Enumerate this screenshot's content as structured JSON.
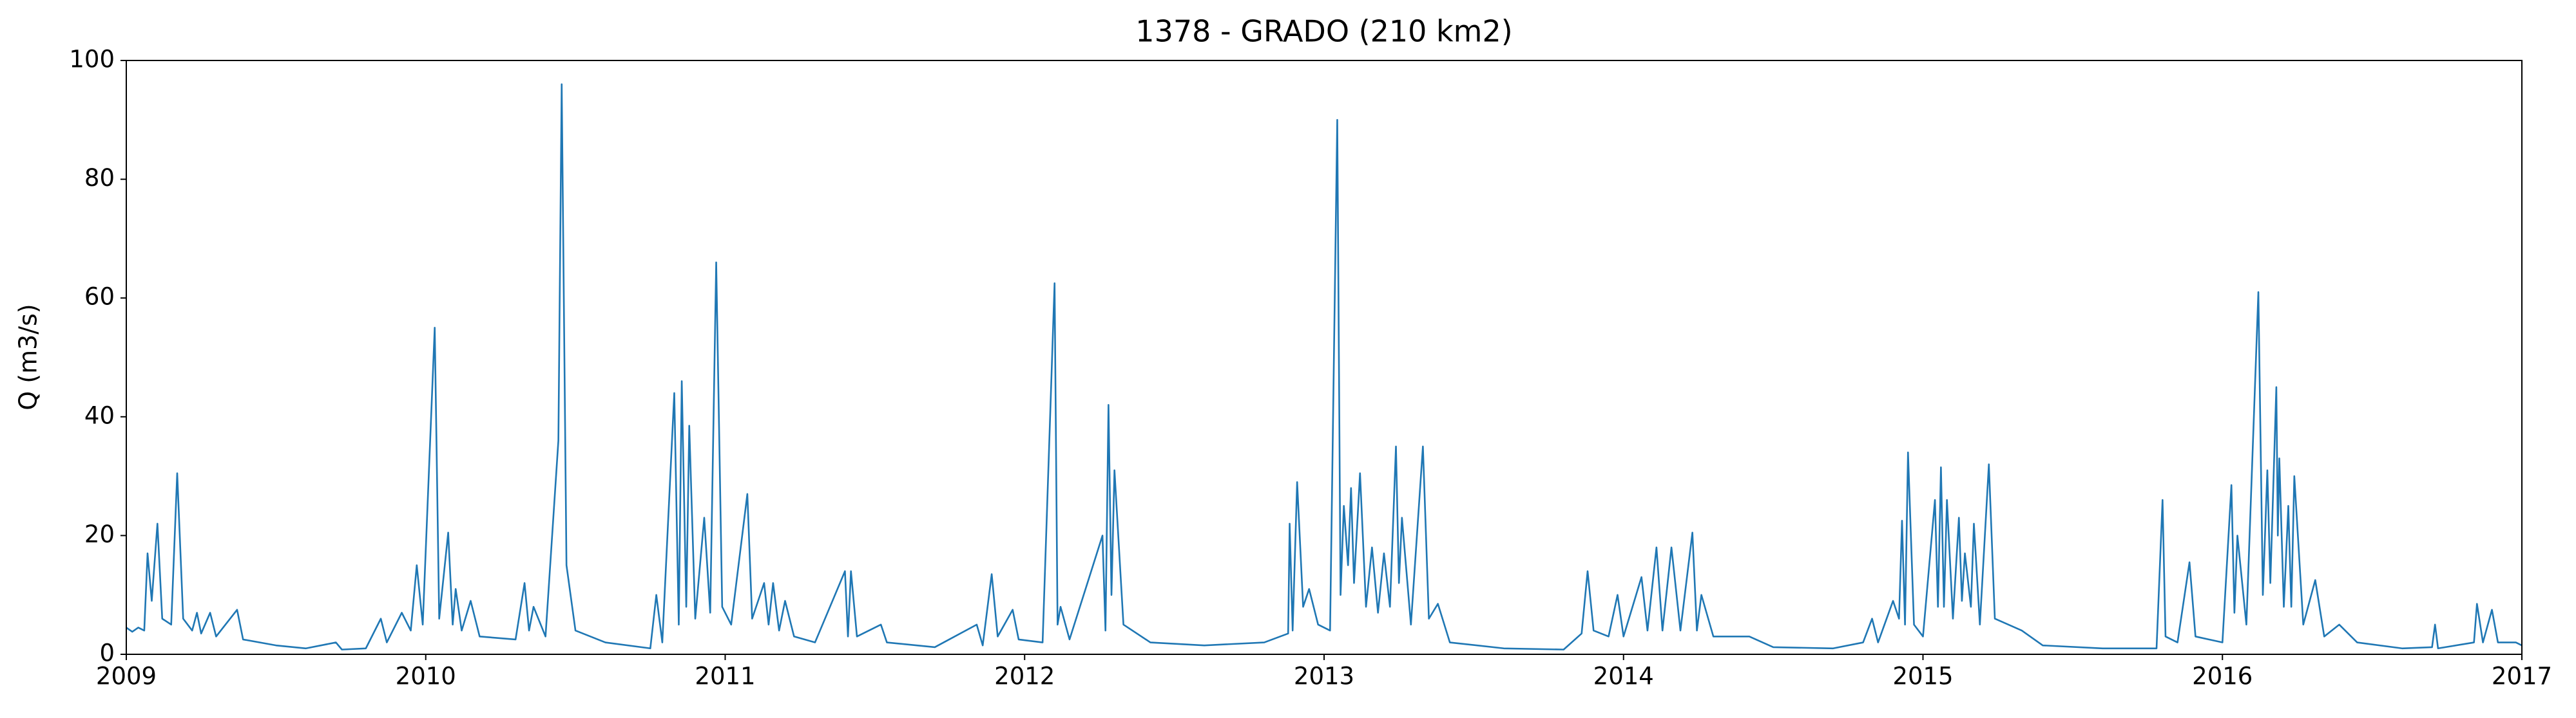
{
  "chart_data": {
    "type": "line",
    "title": "1378 - GRADO (210 km2)",
    "y_label": "Q (m3/s)",
    "color": "#1f77b4",
    "xlim": [
      2009,
      2017
    ],
    "xticks": [
      2009,
      2010,
      2011,
      2012,
      2013,
      2014,
      2015,
      2016,
      2017
    ],
    "ylim": [
      0,
      100
    ],
    "yticks": [
      0,
      20,
      40,
      60,
      80,
      100
    ],
    "x": [
      2009.0,
      2009.02,
      2009.04,
      2009.06,
      2009.071,
      2009.085,
      2009.104,
      2009.12,
      2009.15,
      2009.17,
      2009.19,
      2009.22,
      2009.236,
      2009.25,
      2009.28,
      2009.3,
      2009.37,
      2009.39,
      2009.5,
      2009.6,
      2009.7,
      2009.72,
      2009.8,
      2009.85,
      2009.87,
      2009.92,
      2009.95,
      2009.97,
      2009.99,
      2010.03,
      2010.045,
      2010.075,
      2010.09,
      2010.1,
      2010.12,
      2010.15,
      2010.18,
      2010.3,
      2010.33,
      2010.345,
      2010.36,
      2010.4,
      2010.443,
      2010.454,
      2010.47,
      2010.5,
      2010.6,
      2010.75,
      2010.77,
      2010.79,
      2010.83,
      2010.845,
      2010.855,
      2010.87,
      2010.88,
      2010.9,
      2010.93,
      2010.95,
      2010.97,
      2010.99,
      2011.02,
      2011.074,
      2011.09,
      2011.13,
      2011.145,
      2011.16,
      2011.18,
      2011.2,
      2011.23,
      2011.3,
      2011.4,
      2011.41,
      2011.42,
      2011.44,
      2011.52,
      2011.54,
      2011.7,
      2011.84,
      2011.86,
      2011.89,
      2011.91,
      2011.96,
      2011.98,
      2012.06,
      2012.1,
      2012.11,
      2012.12,
      2012.15,
      2012.26,
      2012.27,
      2012.28,
      2012.29,
      2012.3,
      2012.33,
      2012.42,
      2012.6,
      2012.8,
      2012.88,
      2012.885,
      2012.895,
      2012.91,
      2012.93,
      2012.95,
      2012.98,
      2013.02,
      2013.044,
      2013.055,
      2013.066,
      2013.08,
      2013.09,
      2013.1,
      2013.12,
      2013.14,
      2013.16,
      2013.18,
      2013.2,
      2013.22,
      2013.24,
      2013.25,
      2013.26,
      2013.29,
      2013.33,
      2013.35,
      2013.38,
      2013.42,
      2013.6,
      2013.8,
      2013.86,
      2013.88,
      2013.9,
      2013.95,
      2013.98,
      2014.0,
      2014.06,
      2014.08,
      2014.11,
      2014.13,
      2014.16,
      2014.19,
      2014.23,
      2014.245,
      2014.26,
      2014.3,
      2014.42,
      2014.5,
      2014.7,
      2014.8,
      2014.83,
      2014.85,
      2014.9,
      2014.92,
      2014.93,
      2014.94,
      2014.95,
      2014.97,
      2015.0,
      2015.04,
      2015.05,
      2015.06,
      2015.07,
      2015.08,
      2015.1,
      2015.12,
      2015.13,
      2015.14,
      2015.16,
      2015.17,
      2015.19,
      2015.22,
      2015.24,
      2015.33,
      2015.4,
      2015.6,
      2015.78,
      2015.8,
      2015.81,
      2015.85,
      2015.89,
      2015.91,
      2016.0,
      2016.03,
      2016.04,
      2016.05,
      2016.08,
      2016.12,
      2016.135,
      2016.15,
      2016.16,
      2016.18,
      2016.185,
      2016.19,
      2016.205,
      2016.22,
      2016.23,
      2016.24,
      2016.27,
      2016.31,
      2016.34,
      2016.39,
      2016.45,
      2016.6,
      2016.7,
      2016.71,
      2016.72,
      2016.84,
      2016.85,
      2016.87,
      2016.9,
      2016.92,
      2016.98,
      2017.0
    ],
    "values": [
      4.5,
      3.8,
      4.5,
      4,
      17,
      9,
      22,
      6,
      5,
      30.5,
      6,
      4,
      7,
      3.5,
      7,
      3,
      7.5,
      2.5,
      1.5,
      1,
      2,
      0.8,
      1,
      6,
      2,
      7,
      4,
      15,
      5,
      55,
      6,
      20.5,
      5,
      11,
      4,
      9,
      3,
      2.5,
      12,
      4,
      8,
      3,
      36,
      96,
      15,
      4,
      2,
      1,
      10,
      2,
      44,
      5,
      46,
      8,
      38.5,
      6,
      23,
      7,
      66,
      8,
      5,
      27,
      6,
      12,
      5,
      12,
      4,
      9,
      3,
      2,
      14,
      3,
      14,
      3,
      5,
      2,
      1.2,
      5,
      1.5,
      13.5,
      3,
      7.5,
      2.5,
      2,
      62.5,
      5,
      8,
      2.5,
      20,
      4,
      42,
      10,
      31,
      5,
      2,
      1.5,
      2,
      3.5,
      22,
      4,
      29,
      8,
      11,
      5,
      4,
      90,
      10,
      25,
      15,
      28,
      12,
      30.5,
      8,
      18,
      7,
      17,
      8,
      35,
      12,
      23,
      5,
      35,
      6,
      8.5,
      2,
      1,
      0.8,
      3.5,
      14,
      4,
      3,
      10,
      3,
      13,
      4,
      18,
      4,
      18,
      4,
      20.5,
      4,
      10,
      3,
      3,
      1.2,
      1,
      2,
      6,
      2,
      9,
      6,
      22.5,
      5,
      34,
      5,
      3,
      26,
      8,
      31.5,
      8,
      26,
      6,
      23,
      9,
      17,
      8,
      22,
      5,
      32,
      6,
      4,
      1.5,
      1,
      1,
      26,
      3,
      2,
      15.5,
      3,
      2,
      28.5,
      7,
      20,
      5,
      61,
      10,
      31,
      12,
      45,
      20,
      33,
      8,
      25,
      8,
      30,
      5,
      12.5,
      3,
      5,
      2,
      1,
      1.2,
      5,
      1,
      2,
      8.5,
      2,
      7.5,
      2,
      2,
      1.5
    ]
  }
}
